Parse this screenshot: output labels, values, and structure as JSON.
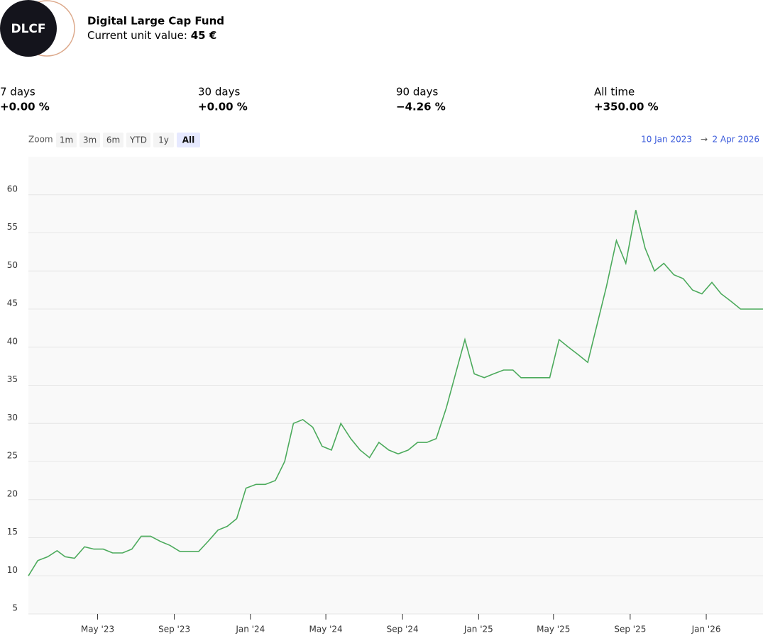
{
  "header": {
    "logo": "DLCF",
    "title": "Digital Large Cap Fund",
    "unit_label": "Current unit value:",
    "unit_value": "45 €"
  },
  "stats": [
    {
      "label": "7 days",
      "value": "+0.00 %"
    },
    {
      "label": "30 days",
      "value": "+0.00 %"
    },
    {
      "label": "90 days",
      "value": "−4.26 %"
    },
    {
      "label": "All time",
      "value": "+350.00 %"
    }
  ],
  "zoom": {
    "label": "Zoom",
    "buttons": [
      "1m",
      "3m",
      "6m",
      "YTD",
      "1y",
      "All"
    ],
    "active": 5
  },
  "range": {
    "start": "10 Jan 2023",
    "arrow": "→",
    "end": "2 Apr 2026"
  },
  "chart_data": {
    "type": "line",
    "grid": true,
    "x": [
      "2023-01-10",
      "2023-01-25",
      "2023-02-10",
      "2023-02-25",
      "2023-03-10",
      "2023-03-25",
      "2023-04-10",
      "2023-04-25",
      "2023-05-10",
      "2023-05-25",
      "2023-06-10",
      "2023-06-25",
      "2023-07-10",
      "2023-07-25",
      "2023-08-10",
      "2023-08-25",
      "2023-09-10",
      "2023-09-25",
      "2023-10-10",
      "2023-10-25",
      "2023-11-10",
      "2023-11-25",
      "2023-12-10",
      "2023-12-25",
      "2024-01-10",
      "2024-01-25",
      "2024-02-10",
      "2024-02-25",
      "2024-03-10",
      "2024-03-25",
      "2024-04-10",
      "2024-04-25",
      "2024-05-10",
      "2024-05-25",
      "2024-06-10",
      "2024-06-25",
      "2024-07-10",
      "2024-07-25",
      "2024-08-10",
      "2024-08-25",
      "2024-09-10",
      "2024-09-25",
      "2024-10-10",
      "2024-10-25",
      "2024-11-10",
      "2024-11-25",
      "2024-12-10",
      "2024-12-25",
      "2025-01-10",
      "2025-01-25",
      "2025-02-10",
      "2025-02-25",
      "2025-03-10",
      "2025-03-25",
      "2025-04-10",
      "2025-04-25",
      "2025-05-10",
      "2025-05-25",
      "2025-06-10",
      "2025-06-25",
      "2025-07-10",
      "2025-07-25",
      "2025-08-10",
      "2025-08-25",
      "2025-09-10",
      "2025-09-25",
      "2025-10-10",
      "2025-10-25",
      "2025-11-10",
      "2025-11-25",
      "2025-12-10",
      "2025-12-25",
      "2026-01-10",
      "2026-01-25",
      "2026-02-10",
      "2026-02-25",
      "2026-03-10",
      "2026-03-25",
      "2026-04-02"
    ],
    "series": [
      {
        "name": "Digital Large Cap Fund",
        "color": "#4caa5c",
        "values": [
          10,
          12,
          12.5,
          13.3,
          12.5,
          12.3,
          13.8,
          13.5,
          13.5,
          13,
          13,
          13.5,
          15.2,
          15.2,
          14.5,
          14,
          13.2,
          13.2,
          13.2,
          14.5,
          16,
          16.5,
          17.5,
          21.5,
          22,
          22,
          22.5,
          25,
          30,
          30.5,
          29.5,
          27,
          26.5,
          30,
          28,
          26.5,
          25.5,
          27.5,
          26.5,
          26,
          26.5,
          27.5,
          27.5,
          28,
          32,
          36.5,
          41,
          36.5,
          36,
          36.5,
          37,
          37,
          36,
          36,
          36,
          36,
          41,
          40,
          39,
          38,
          43,
          48,
          54,
          51,
          58,
          53,
          50,
          51,
          49.5,
          49,
          47.5,
          47,
          48.5,
          47,
          46,
          45,
          45,
          45,
          45
        ]
      }
    ],
    "xlim": [
      "2023-01-10",
      "2026-04-02"
    ],
    "xticks": [
      {
        "value": "2023-05",
        "label": "May '23"
      },
      {
        "value": "2023-09",
        "label": "Sep '23"
      },
      {
        "value": "2024-01",
        "label": "Jan '24"
      },
      {
        "value": "2024-05",
        "label": "May '24"
      },
      {
        "value": "2024-09",
        "label": "Sep '24"
      },
      {
        "value": "2025-01",
        "label": "Jan '25"
      },
      {
        "value": "2025-05",
        "label": "May '25"
      },
      {
        "value": "2025-09",
        "label": "Sep '25"
      },
      {
        "value": "2026-01",
        "label": "Jan '26"
      }
    ],
    "ylim": [
      5,
      65
    ],
    "yticks": [
      5,
      10,
      15,
      20,
      25,
      30,
      35,
      40,
      45,
      50,
      55,
      60
    ]
  }
}
